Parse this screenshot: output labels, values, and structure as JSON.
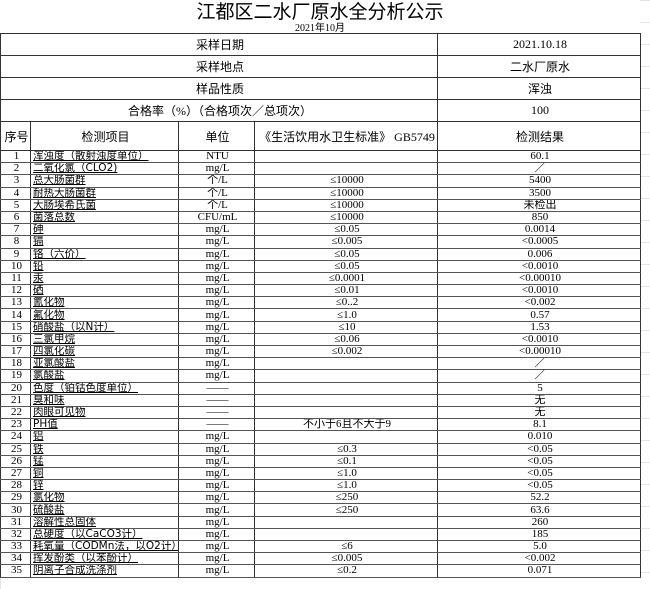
{
  "title": "江都区二水厂原水全分析公示",
  "subtitle": "2021年10月",
  "meta": [
    {
      "label": "采样日期",
      "value": "2021.10.18"
    },
    {
      "label": "采样地点",
      "value": "二水厂原水"
    },
    {
      "label": "样品性质",
      "value": "浑浊"
    },
    {
      "label": "合格率（%）（合格项次／总项次）",
      "value": "100"
    }
  ],
  "headers": {
    "seq": "序号",
    "item": "检测项目",
    "unit": "单位",
    "standard": "《生活饮用水卫生标准》 GB5749",
    "result": "检测结果"
  },
  "rows": [
    [
      "1",
      "浑浊度（散射浊度单位）",
      "NTU",
      "",
      "60.1"
    ],
    [
      "2",
      "二氧化氯（CLO2)",
      "mg/L",
      "",
      "／"
    ],
    [
      "3",
      "总大肠菌群",
      "个/L",
      "≤10000",
      "5400"
    ],
    [
      "4",
      "耐热大肠菌群",
      "个/L",
      "≤10000",
      "3500"
    ],
    [
      "5",
      "大肠埃希氏菌",
      "个/L",
      "≤10000",
      "未检出"
    ],
    [
      "6",
      "菌落总数",
      "CFU/mL",
      "≤10000",
      "850"
    ],
    [
      "7",
      "砷",
      "mg/L",
      "≤0.05",
      "0.0014"
    ],
    [
      "8",
      "镉",
      "mg/L",
      "≤0.005",
      "<0.0005"
    ],
    [
      "9",
      "铬（六价）",
      "mg/L",
      "≤0.05",
      "0.006"
    ],
    [
      "10",
      "铅",
      "mg/L",
      "≤0.05",
      "<0.0010"
    ],
    [
      "11",
      "汞",
      "mg/L",
      "≤0.0001",
      "<0.00010"
    ],
    [
      "12",
      "硒",
      "mg/L",
      "≤0.01",
      "<0.0010"
    ],
    [
      "13",
      "氰化物",
      "mg/L",
      "≤0..2",
      "<0.002"
    ],
    [
      "14",
      "氟化物",
      "mg/L",
      "≤1.0",
      "0.57"
    ],
    [
      "15",
      "硝酸盐（以N计）",
      "mg/L",
      "≤10",
      "1.53"
    ],
    [
      "16",
      "三氯甲烷",
      "mg/L",
      "≤0.06",
      "<0.0010"
    ],
    [
      "17",
      "四氯化碳",
      "mg/L",
      "≤0.002",
      "<0.00010"
    ],
    [
      "18",
      "亚氯酸盐",
      "mg/L",
      "",
      "／"
    ],
    [
      "19",
      "氯酸盐",
      "mg/L",
      "",
      "／"
    ],
    [
      "20",
      "色度（铂钴色度单位）",
      "——",
      "",
      "5"
    ],
    [
      "21",
      "臭和味",
      "——",
      "",
      "无"
    ],
    [
      "22",
      "肉眼可见物",
      "——",
      "",
      "无"
    ],
    [
      "23",
      "PH值",
      "——",
      "不小于6且不大于9",
      "8.1"
    ],
    [
      "24",
      "铝",
      "mg/L",
      "",
      "0.010"
    ],
    [
      "25",
      "铁",
      "mg/L",
      "≤0.3",
      "<0.05"
    ],
    [
      "26",
      "锰",
      "mg/L",
      "≤0.1",
      "<0.05"
    ],
    [
      "27",
      "铜",
      "mg/L",
      "≤1.0",
      "<0.05"
    ],
    [
      "28",
      "锌",
      "mg/L",
      "≤1.0",
      "<0.05"
    ],
    [
      "29",
      "氯化物",
      "mg/L",
      "≤250",
      "52.2"
    ],
    [
      "30",
      "硫酸盐",
      "mg/L",
      "≤250",
      "63.6"
    ],
    [
      "31",
      "溶解性总固体",
      "mg/L",
      "",
      "260"
    ],
    [
      "32",
      "总硬度（以CaCO3计）",
      "mg/L",
      "",
      "185"
    ],
    [
      "33",
      "耗氧量（CODMn法，以O2计）",
      "mg/L",
      "≤6",
      "5.0"
    ],
    [
      "34",
      "挥发酚类（以苯酚计）",
      "mg/L",
      "≤0.005",
      "<0.002"
    ],
    [
      "35",
      "阴离子合成洗涤剂",
      "mg/L",
      "≤0.2",
      "0.071"
    ]
  ]
}
